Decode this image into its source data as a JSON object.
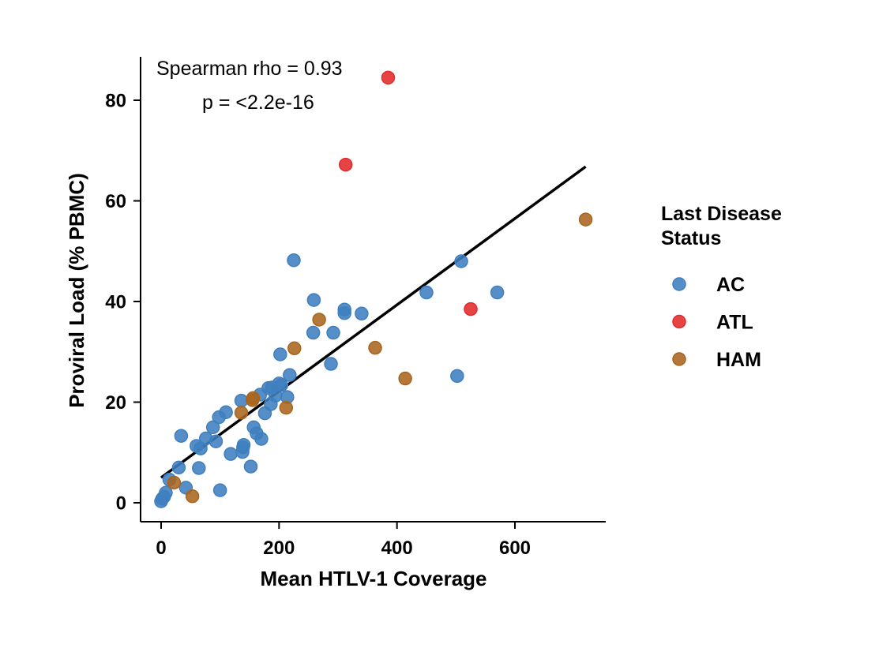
{
  "chart_data": {
    "type": "scatter",
    "xlabel": "Mean HTLV-1 Coverage",
    "ylabel": "Proviral Load (% PBMC)",
    "xlim": [
      -30,
      750
    ],
    "ylim": [
      -4,
      88.5
    ],
    "x_ticks": [
      0,
      200,
      400,
      600
    ],
    "y_ticks": [
      0,
      20,
      40,
      60,
      80
    ],
    "x_tick_labels": [
      "0",
      "200",
      "400",
      "600"
    ],
    "y_tick_labels": [
      "0",
      "20",
      "40",
      "60",
      "80"
    ],
    "grid": false,
    "legend_position": "right",
    "legend_title_lines": [
      "Last Disease",
      "Status"
    ],
    "annotations": [
      "Spearman rho = 0.93",
      "p = <2.2e-16"
    ],
    "colors": {
      "AC": "#3F7FBF",
      "ATL": "#E32A2A",
      "HAM": "#A8651F",
      "fit": "#000000"
    },
    "fit_line": {
      "x": [
        0,
        720
      ],
      "y": [
        5.0,
        66.8
      ]
    },
    "series": [
      {
        "name": "AC",
        "points": [
          [
            0,
            0.3
          ],
          [
            2,
            0.8
          ],
          [
            5,
            1.2
          ],
          [
            8,
            2.0
          ],
          [
            14,
            4.6
          ],
          [
            30,
            7.0
          ],
          [
            34,
            13.3
          ],
          [
            42,
            3.0
          ],
          [
            60,
            11.3
          ],
          [
            64,
            6.9
          ],
          [
            67,
            10.8
          ],
          [
            76,
            12.8
          ],
          [
            88,
            15.0
          ],
          [
            93,
            12.2
          ],
          [
            98,
            17.0
          ],
          [
            100,
            2.5
          ],
          [
            110,
            18.0
          ],
          [
            118,
            9.7
          ],
          [
            136,
            20.3
          ],
          [
            138,
            10.1
          ],
          [
            139,
            11.0
          ],
          [
            140,
            11.5
          ],
          [
            152,
            7.2
          ],
          [
            157,
            15.0
          ],
          [
            162,
            13.8
          ],
          [
            168,
            21.5
          ],
          [
            170,
            12.7
          ],
          [
            176,
            17.8
          ],
          [
            182,
            22.8
          ],
          [
            186,
            19.6
          ],
          [
            188,
            22.9
          ],
          [
            194,
            21.3
          ],
          [
            200,
            23.7
          ],
          [
            202,
            29.5
          ],
          [
            204,
            23.4
          ],
          [
            214,
            21.0
          ],
          [
            218,
            25.4
          ],
          [
            225,
            48.2
          ],
          [
            258,
            33.8
          ],
          [
            259,
            40.3
          ],
          [
            288,
            27.6
          ],
          [
            292,
            33.8
          ],
          [
            311,
            38.4
          ],
          [
            311,
            37.7
          ],
          [
            340,
            37.6
          ],
          [
            450,
            41.8
          ],
          [
            502,
            25.2
          ],
          [
            509,
            48.0
          ],
          [
            570,
            41.8
          ]
        ]
      },
      {
        "name": "ATL",
        "points": [
          [
            313,
            67.2
          ],
          [
            385,
            84.5
          ],
          [
            525,
            38.5
          ]
        ]
      },
      {
        "name": "HAM",
        "points": [
          [
            22,
            4.0
          ],
          [
            53,
            1.3
          ],
          [
            136,
            17.9
          ],
          [
            155,
            20.4
          ],
          [
            156,
            20.8
          ],
          [
            212,
            18.9
          ],
          [
            226,
            30.7
          ],
          [
            268,
            36.4
          ],
          [
            363,
            30.8
          ],
          [
            414,
            24.7
          ],
          [
            720,
            56.3
          ]
        ]
      }
    ]
  }
}
